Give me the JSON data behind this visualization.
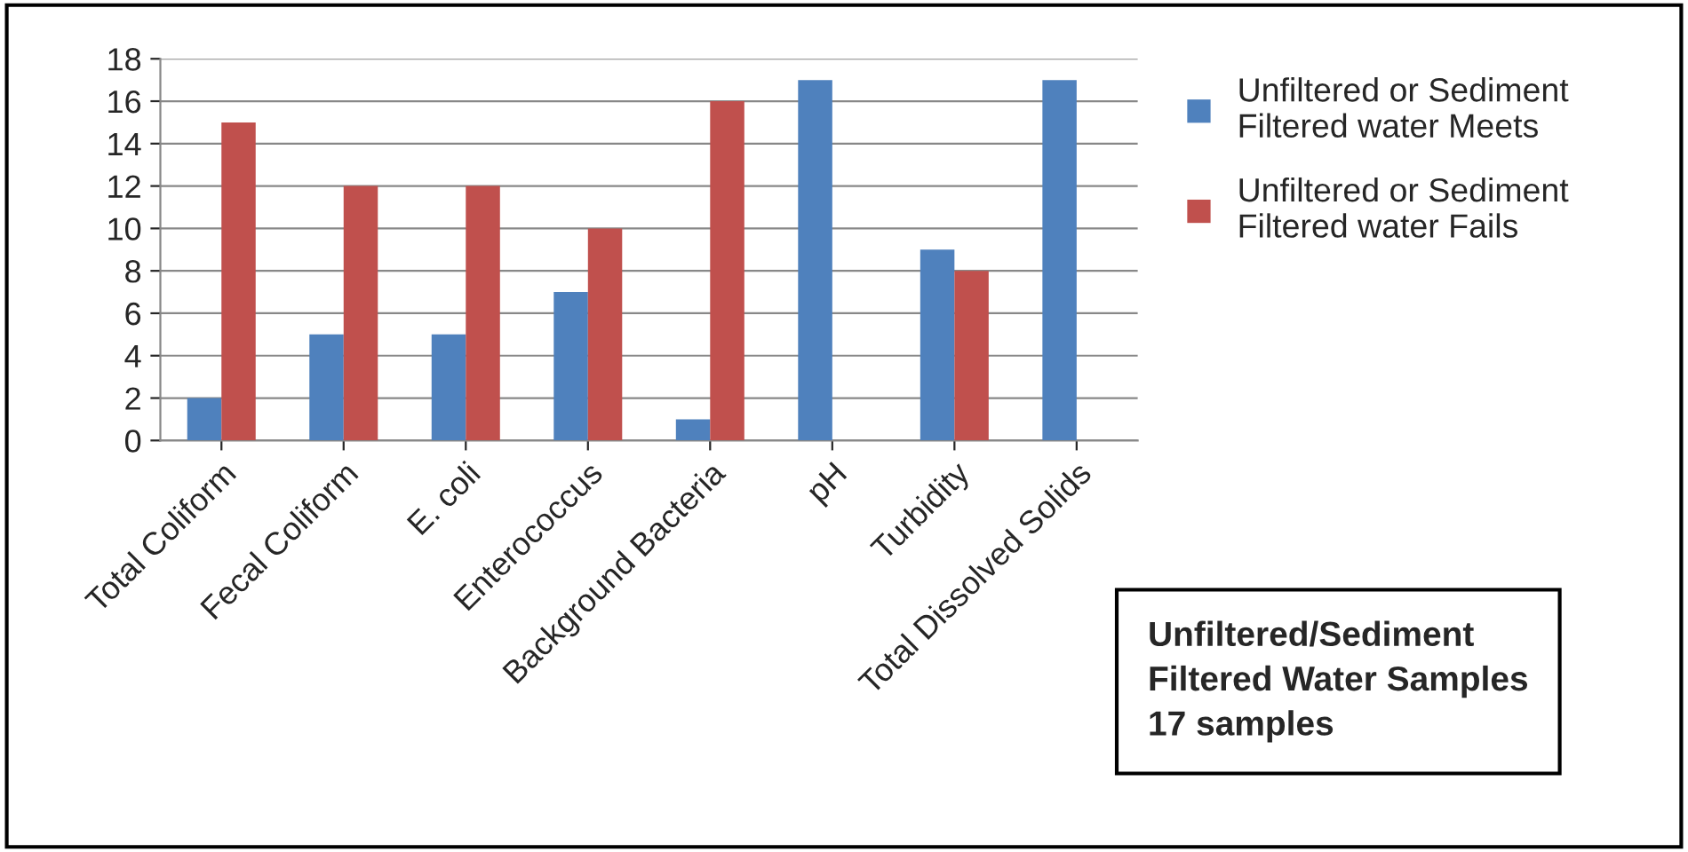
{
  "chart_data": {
    "type": "bar",
    "categories": [
      "Total Coliform",
      "Fecal Coliform",
      "E. coli",
      "Enterococcus",
      "Background Bacteria",
      "pH",
      "Turbidity",
      "Total Dissolved Solids"
    ],
    "series": [
      {
        "name": "Unfiltered or Sediment Filtered water Meets",
        "color": "#4f81bd",
        "values": [
          2,
          5,
          5,
          7,
          1,
          17,
          9,
          17
        ]
      },
      {
        "name": "Unfiltered or Sediment Filtered water Fails",
        "color": "#c0504d",
        "values": [
          15,
          12,
          12,
          10,
          16,
          null,
          8,
          null
        ]
      }
    ],
    "ylim": [
      0,
      18
    ],
    "yticks": [
      0,
      2,
      4,
      6,
      8,
      10,
      12,
      14,
      16,
      18
    ],
    "grid": "y",
    "legend": "top right",
    "annotations": [
      "Unfiltered/Sediment Filtered Water Samples 17 samples"
    ]
  }
}
